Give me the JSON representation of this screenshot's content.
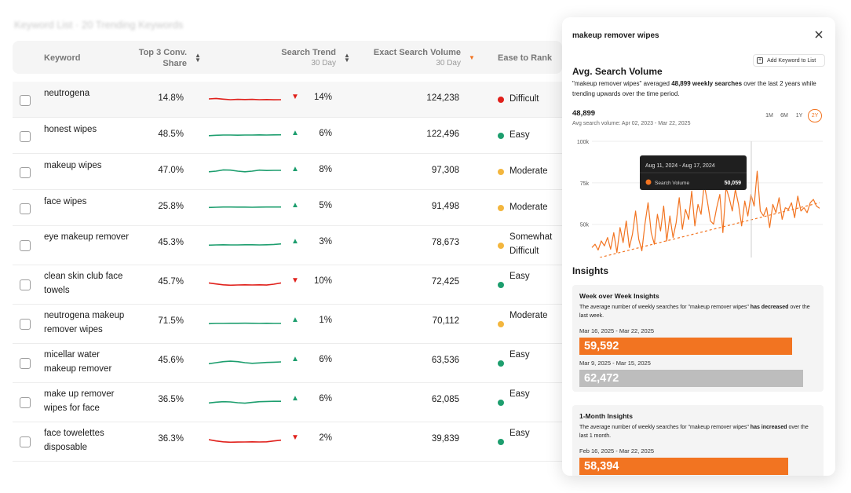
{
  "colors": {
    "accent": "#f27421",
    "up": "#1d9e6e",
    "down": "#e0201b",
    "difficult": "#e0201b",
    "easy": "#1d9e6e",
    "moderate": "#f3b63e"
  },
  "crumb": "Keyword List · 20 Trending Keywords",
  "table": {
    "headers": {
      "keyword": "Keyword",
      "conv_share": "Top 3 Conv. Share",
      "search_trend": "Search Trend",
      "search_trend_sub": "30 Day",
      "exact_volume": "Exact Search Volume",
      "exact_volume_sub": "30 Day",
      "ease": "Ease to Rank"
    },
    "rows": [
      {
        "keyword": "neutrogena",
        "share": "14.8%",
        "trend": "down",
        "trend_pct": "14%",
        "volume": "124,238",
        "ease": "Difficult",
        "ease_level": "difficult",
        "spark": [
          0.5,
          0.46,
          0.52,
          0.56,
          0.54,
          0.55,
          0.54,
          0.56,
          0.55,
          0.57,
          0.56
        ]
      },
      {
        "keyword": "honest wipes",
        "share": "48.5%",
        "trend": "up",
        "trend_pct": "6%",
        "volume": "122,496",
        "ease": "Easy",
        "ease_level": "easy",
        "spark": [
          0.55,
          0.52,
          0.5,
          0.5,
          0.51,
          0.5,
          0.5,
          0.49,
          0.5,
          0.49,
          0.48
        ]
      },
      {
        "keyword": "makeup wipes",
        "share": "47.0%",
        "trend": "up",
        "trend_pct": "8%",
        "volume": "97,308",
        "ease": "Moderate",
        "ease_level": "moderate",
        "spark": [
          0.55,
          0.5,
          0.4,
          0.42,
          0.5,
          0.55,
          0.5,
          0.42,
          0.45,
          0.44,
          0.44
        ]
      },
      {
        "keyword": "face wipes",
        "share": "25.8%",
        "trend": "up",
        "trend_pct": "5%",
        "volume": "91,498",
        "ease": "Moderate",
        "ease_level": "moderate",
        "spark": [
          0.52,
          0.5,
          0.48,
          0.48,
          0.49,
          0.49,
          0.5,
          0.49,
          0.48,
          0.48,
          0.48
        ]
      },
      {
        "keyword": "eye makeup remover",
        "share": "45.3%",
        "trend": "up",
        "trend_pct": "3%",
        "volume": "78,673",
        "ease": "Somewhat Difficult",
        "ease_level": "moderate",
        "spark": [
          0.52,
          0.5,
          0.49,
          0.5,
          0.5,
          0.49,
          0.49,
          0.5,
          0.49,
          0.46,
          0.42
        ]
      },
      {
        "keyword": "clean skin club face towels",
        "share": "45.7%",
        "trend": "down",
        "trend_pct": "10%",
        "volume": "72,425",
        "ease": "Easy",
        "ease_level": "easy",
        "spark": [
          0.4,
          0.48,
          0.55,
          0.58,
          0.56,
          0.55,
          0.56,
          0.55,
          0.57,
          0.5,
          0.4
        ]
      },
      {
        "keyword": "neutrogena makeup remover wipes",
        "share": "71.5%",
        "trend": "up",
        "trend_pct": "1%",
        "volume": "70,112",
        "ease": "Moderate",
        "ease_level": "moderate",
        "spark": [
          0.52,
          0.5,
          0.5,
          0.49,
          0.49,
          0.48,
          0.49,
          0.5,
          0.49,
          0.5,
          0.5
        ]
      },
      {
        "keyword": "micellar water makeup remover",
        "share": "45.6%",
        "trend": "up",
        "trend_pct": "6%",
        "volume": "63,536",
        "ease": "Easy",
        "ease_level": "easy",
        "spark": [
          0.58,
          0.5,
          0.42,
          0.38,
          0.42,
          0.5,
          0.55,
          0.52,
          0.48,
          0.46,
          0.44
        ]
      },
      {
        "keyword": "make up remover wipes for face",
        "share": "36.5%",
        "trend": "up",
        "trend_pct": "6%",
        "volume": "62,085",
        "ease": "Easy",
        "ease_level": "easy",
        "spark": [
          0.58,
          0.52,
          0.48,
          0.5,
          0.56,
          0.6,
          0.54,
          0.48,
          0.46,
          0.45,
          0.45
        ]
      },
      {
        "keyword": "face towelettes disposable",
        "share": "36.3%",
        "trend": "down",
        "trend_pct": "2%",
        "volume": "39,839",
        "ease": "Easy",
        "ease_level": "easy",
        "spark": [
          0.38,
          0.48,
          0.55,
          0.58,
          0.57,
          0.56,
          0.55,
          0.56,
          0.55,
          0.48,
          0.42
        ]
      }
    ]
  },
  "panel": {
    "title": "makeup remover wipes",
    "add_label": "Add Keyword to List",
    "section_title": "Avg. Search Volume",
    "desc_a": "\"makeup remover wipes\" averaged ",
    "desc_b": "48,899 weekly searches",
    "desc_c": " over the last 2 years while trending upwards over the time period.",
    "value": "48,899",
    "avg_label": "Avg search volume: Apr 02, 2023 - Mar 22, 2025",
    "ranges": [
      "1M",
      "6M",
      "1Y",
      "2Y"
    ],
    "active_range": "2Y",
    "insights_title": "Insights",
    "cards": [
      {
        "title": "Week over Week Insights",
        "desc_a": "The average number of weekly searches for \"makeup remover wipes\" ",
        "desc_b": "has decreased",
        "desc_c": " over the last week.",
        "cur_label": "Mar 16, 2025 - Mar 22, 2025",
        "cur_value": "59,592",
        "prev_label": "Mar 9, 2025 - Mar 15, 2025",
        "prev_value": "62,472"
      },
      {
        "title": "1-Month Insights",
        "desc_a": "The average number of weekly searches for \"makeup remover wipes\" ",
        "desc_b": "has increased",
        "desc_c": " over the last 1 month.",
        "cur_label": "Feb 16, 2025 - Mar 22, 2025",
        "cur_value": "58,394"
      }
    ]
  },
  "chart_data": {
    "type": "line",
    "ylabel": "",
    "yticks": [
      "100k",
      "75k",
      "50k"
    ],
    "ylim": [
      30000,
      100000
    ],
    "series": [
      {
        "name": "Search Volume",
        "values": [
          36000,
          38000,
          34500,
          40000,
          37000,
          42000,
          35000,
          45000,
          33000,
          48000,
          39000,
          52000,
          36000,
          44000,
          58000,
          41000,
          34000,
          50000,
          63000,
          45000,
          38000,
          56000,
          46000,
          61000,
          40000,
          55000,
          42000,
          51000,
          66000,
          47000,
          59000,
          53000,
          70000,
          49000,
          62000,
          56000,
          74000,
          64000,
          52000,
          50059,
          60000,
          68000,
          45000,
          72000,
          66000,
          58000,
          71000,
          62000,
          49000,
          64000,
          55000,
          68000,
          61000,
          82000,
          58000,
          55000,
          60000,
          48000,
          62000,
          57000,
          66000,
          53000,
          60000,
          59000,
          63000,
          54000,
          67000,
          58000,
          60000,
          57000,
          63000,
          65000,
          61000,
          59592
        ]
      },
      {
        "name": "Trend",
        "values": [
          30000,
          63000
        ]
      }
    ],
    "tooltip": {
      "range": "Aug 11, 2024 - Aug 17, 2024",
      "label": "Search Volume",
      "value": "50,059"
    },
    "grid": true
  }
}
